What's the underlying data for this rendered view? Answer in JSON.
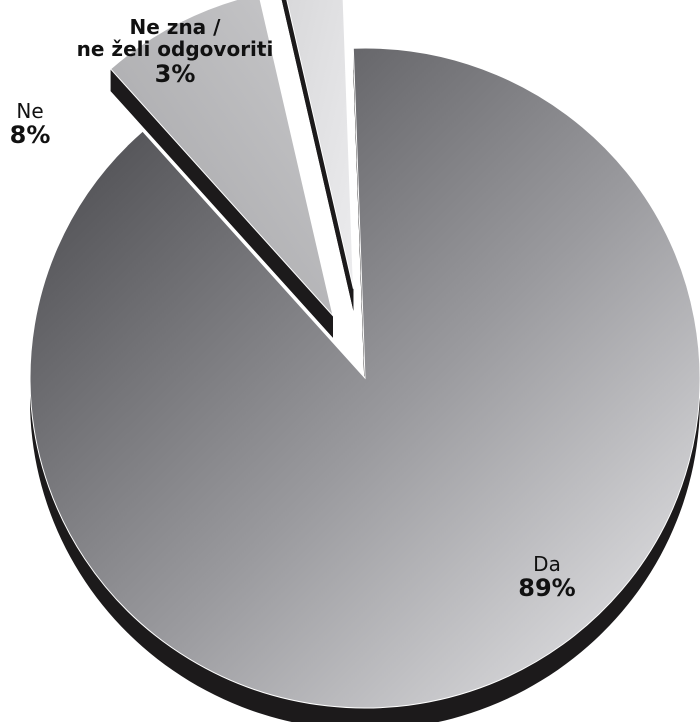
{
  "chart_data": {
    "type": "pie",
    "title": "",
    "slices": [
      {
        "label": "Da",
        "value": 89,
        "value_label": "89%",
        "color": "#8e8e92"
      },
      {
        "label": "Ne",
        "value": 8,
        "value_label": "8%",
        "color": "#b3b3b6"
      },
      {
        "label": "Ne zna /\nne želi odgovoriti",
        "value": 3,
        "value_label": "3%",
        "color": "#dddddf"
      }
    ],
    "style": "3d-exploded",
    "legend": "none"
  },
  "colors": {
    "background": "#ffffff",
    "side": "#1c1a1b",
    "label_text": "#111111"
  }
}
